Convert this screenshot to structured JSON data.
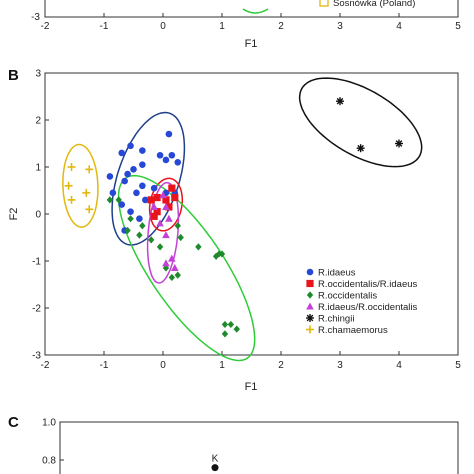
{
  "panels": {
    "A": {
      "x_ticks": [
        "-2",
        "-1",
        "0",
        "1",
        "2",
        "3",
        "4",
        "5"
      ],
      "y_tick_visible": "-3",
      "xlabel": "F1",
      "legend_partial": "Sosnówka (Poland)"
    },
    "C": {
      "label": "C",
      "y_ticks": [
        "1.0",
        "0.8"
      ],
      "point_label": "K",
      "point_value": 0.76
    }
  },
  "chart_data": {
    "type": "scatter",
    "panel": "B",
    "title": "",
    "xlabel": "F1",
    "ylabel": "F2",
    "xlim": [
      -2,
      5
    ],
    "ylim": [
      -3,
      3
    ],
    "x_ticks": [
      -2,
      -1,
      0,
      1,
      2,
      3,
      4,
      5
    ],
    "y_ticks": [
      -3,
      -2,
      -1,
      0,
      1,
      2,
      3
    ],
    "legend_position": "bottom-right",
    "series": [
      {
        "name": "R.idaeus",
        "marker": "circle",
        "color": "#2747d6",
        "points": [
          [
            0.1,
            1.7
          ],
          [
            0.15,
            1.25
          ],
          [
            -0.05,
            1.25
          ],
          [
            -0.35,
            1.35
          ],
          [
            -0.55,
            1.45
          ],
          [
            -0.7,
            1.3
          ],
          [
            0.25,
            1.1
          ],
          [
            0.05,
            1.15
          ],
          [
            -0.35,
            1.05
          ],
          [
            -0.5,
            0.95
          ],
          [
            -0.6,
            0.85
          ],
          [
            -0.9,
            0.8
          ],
          [
            -0.65,
            0.7
          ],
          [
            -0.35,
            0.6
          ],
          [
            -0.15,
            0.55
          ],
          [
            -0.45,
            0.45
          ],
          [
            -0.85,
            0.45
          ],
          [
            0.05,
            0.45
          ],
          [
            0.2,
            0.45
          ],
          [
            -0.3,
            0.3
          ],
          [
            -0.7,
            0.2
          ],
          [
            -0.55,
            0.05
          ],
          [
            -0.4,
            -0.1
          ],
          [
            -0.65,
            -0.35
          ]
        ]
      },
      {
        "name": "R.occidentalis/R.idaeus",
        "marker": "square",
        "color": "#e8131b",
        "points": [
          [
            0.15,
            0.55
          ],
          [
            0.2,
            0.35
          ],
          [
            0.05,
            0.3
          ],
          [
            -0.1,
            0.35
          ],
          [
            -0.2,
            0.3
          ],
          [
            0.1,
            0.15
          ],
          [
            -0.1,
            0.05
          ],
          [
            -0.15,
            -0.05
          ]
        ]
      },
      {
        "name": "R.occidentalis",
        "marker": "diamond",
        "color": "#1f8a2c",
        "points": [
          [
            -0.9,
            0.3
          ],
          [
            -0.75,
            0.3
          ],
          [
            -0.55,
            -0.1
          ],
          [
            -0.4,
            -0.45
          ],
          [
            -0.2,
            -0.55
          ],
          [
            -0.05,
            -0.7
          ],
          [
            0.25,
            -0.25
          ],
          [
            0.6,
            -0.7
          ],
          [
            0.9,
            -0.9
          ],
          [
            1.0,
            -0.85
          ],
          [
            0.05,
            -1.15
          ],
          [
            0.15,
            -1.35
          ],
          [
            0.25,
            -1.3
          ],
          [
            0.95,
            -0.85
          ],
          [
            1.05,
            -2.35
          ],
          [
            1.15,
            -2.35
          ],
          [
            1.25,
            -2.45
          ],
          [
            1.05,
            -2.55
          ],
          [
            -0.35,
            -0.25
          ],
          [
            -0.6,
            -0.35
          ],
          [
            0.3,
            -0.5
          ]
        ]
      },
      {
        "name": "R.idaeus/R.occidentalis",
        "marker": "triangle",
        "color": "#c441d6",
        "points": [
          [
            0.0,
            0.4
          ],
          [
            0.05,
            0.15
          ],
          [
            -0.15,
            0.15
          ],
          [
            0.1,
            -0.1
          ],
          [
            -0.05,
            -0.2
          ],
          [
            0.05,
            -0.45
          ],
          [
            0.15,
            -0.95
          ],
          [
            0.05,
            -1.05
          ],
          [
            0.2,
            -1.15
          ]
        ]
      },
      {
        "name": "R.chingii",
        "marker": "star",
        "color": "#111111",
        "points": [
          [
            3.0,
            2.4
          ],
          [
            3.35,
            1.4
          ],
          [
            4.0,
            1.5
          ]
        ]
      },
      {
        "name": "R.chamaemorus",
        "marker": "plus",
        "color": "#e2b80f",
        "points": [
          [
            -1.55,
            1.0
          ],
          [
            -1.25,
            0.95
          ],
          [
            -1.6,
            0.6
          ],
          [
            -1.3,
            0.45
          ],
          [
            -1.55,
            0.3
          ],
          [
            -1.25,
            0.1
          ]
        ]
      }
    ],
    "ellipses": [
      {
        "series": "R.idaeus",
        "color": "#1f3f8a",
        "cx": -0.25,
        "cy": 0.75,
        "rx": 1.3,
        "ry": 0.58,
        "angle_deg": 72
      },
      {
        "series": "R.occidentalis/R.idaeus",
        "color": "#e8131b",
        "cx": 0.05,
        "cy": 0.2,
        "rx": 0.5,
        "ry": 0.3,
        "angle_deg": 80
      },
      {
        "series": "R.occidentalis",
        "color": "#2fcc3a",
        "cx": 0.4,
        "cy": -1.15,
        "rx": 2.05,
        "ry": 0.7,
        "angle_deg": -56
      },
      {
        "series": "R.idaeus/R.occidentalis",
        "color": "#c441d6",
        "cx": 0.0,
        "cy": -0.4,
        "rx": 0.95,
        "ry": 0.28,
        "angle_deg": 85
      },
      {
        "series": "R.chingii",
        "color": "#111111",
        "cx": 3.35,
        "cy": 1.95,
        "rx": 1.28,
        "ry": 0.62,
        "angle_deg": -30
      },
      {
        "series": "R.chamaemorus",
        "color": "#e2b80f",
        "cx": -1.4,
        "cy": 0.6,
        "rx": 0.78,
        "ry": 0.33,
        "angle_deg": 92
      }
    ]
  }
}
